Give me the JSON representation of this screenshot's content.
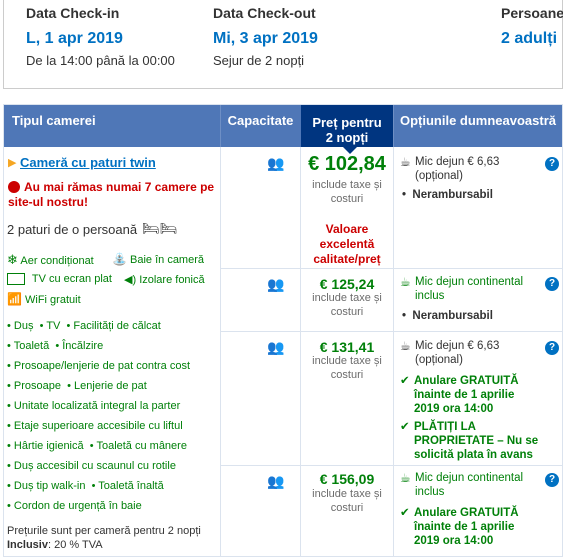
{
  "dates": {
    "checkin_header": "Data Check-in",
    "checkin_value": "L, 1 apr 2019",
    "checkin_time": "De la 14:00 până la 00:00",
    "checkout_header": "Data Check-out",
    "checkout_value": "Mi, 3 apr 2019",
    "checkout_stay": "Sejur de 2 nopți",
    "persons_header": "Persoane",
    "persons_value": "2 adulți"
  },
  "columns": {
    "room_type": "Tipul camerei",
    "capacity": "Capacitate",
    "price_line1": "Preț pentru",
    "price_line2": "2 nopți",
    "options": "Opțiunile dumneavoastră"
  },
  "room": {
    "name": "Cameră cu paturi twin",
    "warning": "Au mai rămas numai 7 camere pe site-ul nostru!",
    "beds": "2 paturi de o persoană",
    "facilities": [
      {
        "icon": "snowflake-icon",
        "label": "Aer condiționat"
      },
      {
        "icon": "shower-icon",
        "label": "Baie în cameră"
      },
      {
        "icon": "tv-icon",
        "label": "TV cu ecran plat"
      },
      {
        "icon": "speaker-icon",
        "label": "Izolare fonică"
      },
      {
        "icon": "wifi-icon",
        "label": "WiFi gratuit"
      }
    ],
    "amenities": [
      "Duș",
      "TV",
      "Facilități de călcat",
      "Toaletă",
      "Încălzire",
      "Prosoape/lenjerie de pat contra cost",
      "Prosoape",
      "Lenjerie de pat",
      "Unitate localizată integral la parter",
      "Etaje superioare accesibile cu liftul",
      "Hârtie igienică",
      "Toaletă cu mânere",
      "Duș accesibil cu scaunul cu rotile",
      "Duș tip walk-in",
      "Toaletă înaltă",
      "Cordon de urgență în baie"
    ],
    "prices_note": "Prețurile sunt per cameră pentru 2 nopți",
    "vat_label": "Inclusiv",
    "vat_value": ": 20 % TVA"
  },
  "offers": [
    {
      "price": "€ 102,84",
      "taxes": "include taxe și costuri",
      "value_badge": "Valoare excelentă calitate/preț",
      "options": [
        {
          "text": "Mic dejun € 6,63 (opțional)",
          "style": "plain",
          "icon": "coffee-icon"
        },
        {
          "text": "Nerambursabil",
          "style": "bold",
          "icon": "bullet"
        }
      ]
    },
    {
      "price": "€ 125,24",
      "taxes": "include taxe și costuri",
      "options": [
        {
          "text": "Mic dejun continental inclus",
          "style": "green",
          "icon": "coffee-icon"
        },
        {
          "text": "Nerambursabil",
          "style": "bold",
          "icon": "bullet"
        }
      ]
    },
    {
      "price": "€ 131,41",
      "taxes": "include taxe și costuri",
      "options": [
        {
          "text": "Mic dejun € 6,63 (opțional)",
          "style": "plain",
          "icon": "coffee-icon"
        },
        {
          "text": "Anulare GRATUITĂ înainte de 1 aprilie 2019 ora 14:00",
          "style": "greenb",
          "icon": "check-icon"
        },
        {
          "text": "PLĂTIȚI LA PROPRIETATE – Nu se solicită plata în avans",
          "style": "greenb",
          "icon": "check-icon"
        }
      ]
    },
    {
      "price": "€ 156,09",
      "taxes": "include taxe și costuri",
      "options": [
        {
          "text": "Mic dejun continental inclus",
          "style": "green",
          "icon": "coffee-icon"
        },
        {
          "text": "Anulare GRATUITĂ înainte de 1 aprilie 2019 ora 14:00",
          "style": "greenb",
          "icon": "check-icon"
        }
      ]
    }
  ],
  "info_icon": "?",
  "colors": {
    "header_bg": "#4f77b7",
    "price_header_bg": "#003580",
    "link": "#0071c2",
    "green": "#008009",
    "red": "#cc0000"
  }
}
